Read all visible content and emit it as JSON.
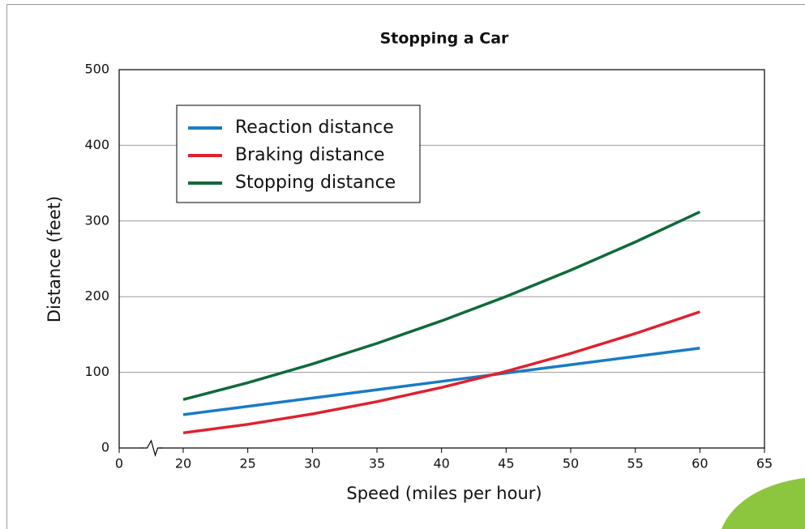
{
  "chart_data": {
    "type": "line",
    "title": "Stopping a Car",
    "x_label": "Speed (miles per hour)",
    "y_label": "Distance (feet)",
    "x": [
      20,
      25,
      30,
      35,
      40,
      45,
      50,
      55,
      60
    ],
    "series": [
      {
        "name": "Reaction distance",
        "color": "#1a7bc4",
        "values": [
          44,
          55,
          66,
          77,
          88,
          99,
          110,
          121,
          132
        ]
      },
      {
        "name": "Braking distance",
        "color": "#e0202e",
        "values": [
          20,
          31.25,
          45,
          61.25,
          80,
          101.25,
          125,
          151.25,
          180
        ]
      },
      {
        "name": "Stopping distance",
        "color": "#0f6a3a",
        "values": [
          64,
          86.25,
          111,
          138.25,
          168,
          200.25,
          235,
          272.25,
          312
        ]
      }
    ],
    "xlim": [
      0,
      65
    ],
    "xticks": [
      0,
      20,
      25,
      30,
      35,
      40,
      45,
      50,
      55,
      60,
      65
    ],
    "x_axis_break": true,
    "ylim": [
      0,
      500
    ],
    "yticks": [
      0,
      100,
      200,
      300,
      400,
      500
    ],
    "grid": true,
    "legend": "upper left"
  }
}
